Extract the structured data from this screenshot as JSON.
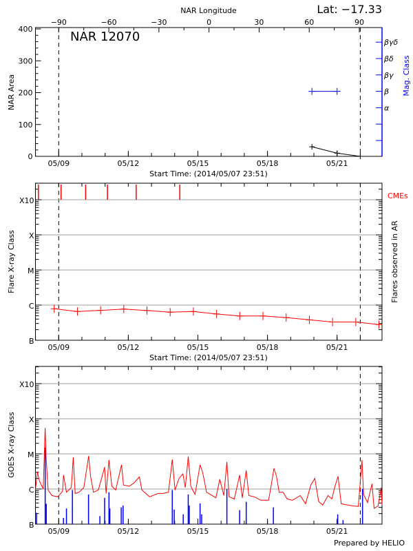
{
  "header": {
    "lat_label": "Lat: −17.33",
    "top_axis_label": "NAR Longitude",
    "region_title": "NAR 12070",
    "footer": "Prepared by HELIO"
  },
  "colors": {
    "axis": "#000000",
    "grid": "#a0a0a0",
    "mag_class": "#0000ff",
    "flare": "#ff0000",
    "goes_long": "#ff0000",
    "goes_short": "#0000ff",
    "cme": "#ff0000"
  },
  "chart_data": [
    {
      "type": "line",
      "ylabel": "NAR Area",
      "ylabel_right": "Mag. Class",
      "xlabel": "Start Time: (2014/05/07 23:51)",
      "ylim": [
        0,
        400
      ],
      "yticks": [
        "0",
        "100",
        "200",
        "300",
        "400"
      ],
      "xlim": [
        "2014-05-07T23:51",
        "2014-05-22T23:30"
      ],
      "xticks": [
        {
          "label": "05/09",
          "t": "2014-05-09T00:00"
        },
        {
          "label": "05/12",
          "t": "2014-05-12T00:00"
        },
        {
          "label": "05/15",
          "t": "2014-05-15T00:00"
        },
        {
          "label": "05/18",
          "t": "2014-05-18T00:00"
        },
        {
          "label": "05/21",
          "t": "2014-05-21T00:00"
        }
      ],
      "top_axis": {
        "label": "NAR Longitude",
        "ticks": [
          "-90",
          "-60",
          "-30",
          "0",
          "30",
          "60",
          "90"
        ],
        "range": [
          -90,
          90
        ]
      },
      "limb_markers": [
        "2014-05-09T00:00",
        "2014-05-22T00:00"
      ],
      "mag_class_ticks": [
        "",
        "",
        "α",
        "β",
        "βγ",
        "βδ",
        "βγδ"
      ],
      "area_series": [
        {
          "t": "2014-05-19T22:00",
          "v": 30
        },
        {
          "t": "2014-05-21T00:00",
          "v": 10
        },
        {
          "t": "2014-05-22T00:00",
          "v": 0
        }
      ],
      "mag_class_series": [
        {
          "t": "2014-05-19T22:00",
          "class": "β"
        },
        {
          "t": "2014-05-21T00:00",
          "class": "β"
        }
      ]
    },
    {
      "type": "line",
      "ylabel": "Flare X-ray Class",
      "ylabel_right": "Flares observed in AR",
      "cme_label": "CMEs",
      "xlabel": "Start Time: (2014/05/07 23:51)",
      "yscale": "log",
      "ylim": [
        1e-07,
        0.003
      ],
      "yticks": [
        {
          "label": "B",
          "v": 1e-07
        },
        {
          "label": "C",
          "v": 1e-06
        },
        {
          "label": "M",
          "v": 1e-05
        },
        {
          "label": "X",
          "v": 0.0001
        },
        {
          "label": "X10",
          "v": 0.001
        }
      ],
      "grid": true,
      "cmes": [
        "2014-05-08T03:00",
        "2014-05-09T02:25",
        "2014-05-10T03:50",
        "2014-05-11T02:25",
        "2014-05-12T08:10",
        "2014-05-14T05:15"
      ],
      "background_flux": [
        {
          "t": "2014-05-08T19:20",
          "v": 7.9e-07
        },
        {
          "t": "2014-05-09T19:20",
          "v": 6.6e-07
        },
        {
          "t": "2014-05-10T19:20",
          "v": 7.1e-07
        },
        {
          "t": "2014-05-11T19:20",
          "v": 7.7e-07
        },
        {
          "t": "2014-05-12T19:20",
          "v": 7e-07
        },
        {
          "t": "2014-05-13T19:20",
          "v": 6.3e-07
        },
        {
          "t": "2014-05-14T19:20",
          "v": 6.6e-07
        },
        {
          "t": "2014-05-15T19:20",
          "v": 5.6e-07
        },
        {
          "t": "2014-05-16T19:20",
          "v": 4.9e-07
        },
        {
          "t": "2014-05-17T19:20",
          "v": 4.9e-07
        },
        {
          "t": "2014-05-18T19:20",
          "v": 4.4e-07
        },
        {
          "t": "2014-05-19T19:20",
          "v": 3.8e-07
        },
        {
          "t": "2014-05-20T19:20",
          "v": 3.3e-07
        },
        {
          "t": "2014-05-21T19:20",
          "v": 3.3e-07
        },
        {
          "t": "2014-05-22T19:20",
          "v": 2.8e-07
        }
      ]
    },
    {
      "type": "line",
      "ylabel": "GOES X-ray Class",
      "yscale": "log",
      "ylim": [
        1e-07,
        0.003
      ],
      "yticks": [
        {
          "label": "B",
          "v": 1e-07
        },
        {
          "label": "C",
          "v": 1e-06
        },
        {
          "label": "M",
          "v": 1e-05
        },
        {
          "label": "X",
          "v": 0.0001
        },
        {
          "label": "X10",
          "v": 0.001
        }
      ],
      "grid": true,
      "long_channel": [
        {
          "t": "2014-05-07T23:51",
          "v": 9.4e-07
        },
        {
          "t": "2014-05-08T02:00",
          "v": 3.1e-06
        },
        {
          "t": "2014-05-08T04:00",
          "v": 1.7e-06
        },
        {
          "t": "2014-05-08T08:00",
          "v": 1e-06
        },
        {
          "t": "2014-05-08T10:00",
          "v": 5.5e-05
        },
        {
          "t": "2014-05-08T11:00",
          "v": 7.7e-06
        },
        {
          "t": "2014-05-08T13:00",
          "v": 9.4e-07
        },
        {
          "t": "2014-05-08T17:00",
          "v": 6.5e-07
        },
        {
          "t": "2014-05-08T23:00",
          "v": 6e-07
        },
        {
          "t": "2014-05-09T04:00",
          "v": 8.7e-07
        },
        {
          "t": "2014-05-09T05:00",
          "v": 2.5e-06
        },
        {
          "t": "2014-05-09T08:00",
          "v": 8.1e-07
        },
        {
          "t": "2014-05-09T13:00",
          "v": 1.1e-06
        },
        {
          "t": "2014-05-09T15:00",
          "v": 8e-06
        },
        {
          "t": "2014-05-09T17:00",
          "v": 7.5e-07
        },
        {
          "t": "2014-05-09T21:00",
          "v": 8.1e-07
        },
        {
          "t": "2014-05-10T02:00",
          "v": 1.1e-06
        },
        {
          "t": "2014-05-10T07:00",
          "v": 8.7e-06
        },
        {
          "t": "2014-05-10T09:00",
          "v": 2.3e-06
        },
        {
          "t": "2014-05-10T12:00",
          "v": 8.1e-07
        },
        {
          "t": "2014-05-10T17:00",
          "v": 9.4e-07
        },
        {
          "t": "2014-05-10T23:30",
          "v": 4.2e-06
        },
        {
          "t": "2014-05-11T01:00",
          "v": 7.5e-07
        },
        {
          "t": "2014-05-11T04:00",
          "v": 6.7e-06
        },
        {
          "t": "2014-05-11T07:00",
          "v": 1.2e-06
        },
        {
          "t": "2014-05-11T11:00",
          "v": 9.4e-07
        },
        {
          "t": "2014-05-11T17:00",
          "v": 4.9e-06
        },
        {
          "t": "2014-05-11T19:00",
          "v": 1.3e-06
        },
        {
          "t": "2014-05-12T01:00",
          "v": 1.2e-06
        },
        {
          "t": "2014-05-12T06:00",
          "v": 1.5e-06
        },
        {
          "t": "2014-05-12T11:30",
          "v": 2.2e-06
        },
        {
          "t": "2014-05-12T14:00",
          "v": 9.4e-07
        },
        {
          "t": "2014-05-12T22:00",
          "v": 6e-07
        },
        {
          "t": "2014-05-13T07:00",
          "v": 7.5e-07
        },
        {
          "t": "2014-05-13T12:00",
          "v": 7.5e-07
        },
        {
          "t": "2014-05-13T17:30",
          "v": 8.1e-07
        },
        {
          "t": "2014-05-13T21:30",
          "v": 6.9e-06
        },
        {
          "t": "2014-05-14T00:20",
          "v": 9.4e-07
        },
        {
          "t": "2014-05-14T04:30",
          "v": 2e-06
        },
        {
          "t": "2014-05-14T08:30",
          "v": 2.7e-06
        },
        {
          "t": "2014-05-14T11:00",
          "v": 1.1e-06
        },
        {
          "t": "2014-05-14T14:00",
          "v": 8.4e-06
        },
        {
          "t": "2014-05-14T16:40",
          "v": 1.2e-06
        },
        {
          "t": "2014-05-14T21:00",
          "v": 7e-07
        },
        {
          "t": "2014-05-15T02:15",
          "v": 4.9e-06
        },
        {
          "t": "2014-05-15T05:00",
          "v": 2.9e-06
        },
        {
          "t": "2014-05-15T09:00",
          "v": 8.1e-07
        },
        {
          "t": "2014-05-15T13:00",
          "v": 7e-07
        },
        {
          "t": "2014-05-15T18:40",
          "v": 5.6e-07
        },
        {
          "t": "2014-05-15T22:40",
          "v": 1.9e-06
        },
        {
          "t": "2014-05-16T02:50",
          "v": 6.5e-07
        },
        {
          "t": "2014-05-16T06:00",
          "v": 5.9e-06
        },
        {
          "t": "2014-05-16T08:15",
          "v": 6e-07
        },
        {
          "t": "2014-05-16T13:40",
          "v": 5.2e-07
        },
        {
          "t": "2014-05-16T19:10",
          "v": 2.5e-06
        },
        {
          "t": "2014-05-16T21:55",
          "v": 5.6e-07
        },
        {
          "t": "2014-05-17T02:00",
          "v": 3.4e-06
        },
        {
          "t": "2014-05-17T04:40",
          "v": 6.5e-07
        },
        {
          "t": "2014-05-17T10:10",
          "v": 6e-07
        },
        {
          "t": "2014-05-17T17:00",
          "v": 4.8e-07
        },
        {
          "t": "2014-05-18T01:10",
          "v": 4.8e-07
        },
        {
          "t": "2014-05-18T03:55",
          "v": 1.3e-06
        },
        {
          "t": "2014-05-18T06:40",
          "v": 3.9e-06
        },
        {
          "t": "2014-05-18T09:20",
          "v": 2.3e-06
        },
        {
          "t": "2014-05-18T12:05",
          "v": 8.1e-07
        },
        {
          "t": "2014-05-18T16:10",
          "v": 8.1e-07
        },
        {
          "t": "2014-05-18T20:20",
          "v": 5.2e-07
        },
        {
          "t": "2014-05-19T01:45",
          "v": 4.8e-07
        },
        {
          "t": "2014-05-19T09:55",
          "v": 6.5e-07
        },
        {
          "t": "2014-05-19T15:25",
          "v": 3.8e-07
        },
        {
          "t": "2014-05-19T20:50",
          "v": 1.3e-06
        },
        {
          "t": "2014-05-20T00:55",
          "v": 2e-06
        },
        {
          "t": "2014-05-20T05:00",
          "v": 4.4e-07
        },
        {
          "t": "2014-05-20T09:10",
          "v": 3.5e-07
        },
        {
          "t": "2014-05-20T14:35",
          "v": 6.5e-07
        },
        {
          "t": "2014-05-20T18:40",
          "v": 5.2e-07
        },
        {
          "t": "2014-05-20T21:25",
          "v": 1.1e-06
        },
        {
          "t": "2014-05-21T01:00",
          "v": 2.3e-06
        },
        {
          "t": "2014-05-21T04:15",
          "v": 3.8e-07
        },
        {
          "t": "2014-05-21T11:00",
          "v": 3.5e-07
        },
        {
          "t": "2014-05-21T16:30",
          "v": 3.3e-07
        },
        {
          "t": "2014-05-21T22:00",
          "v": 3.2e-07
        },
        {
          "t": "2014-05-22T01:45",
          "v": 6.7e-06
        },
        {
          "t": "2014-05-22T03:25",
          "v": 7e-07
        },
        {
          "t": "2014-05-22T07:30",
          "v": 4.1e-07
        },
        {
          "t": "2014-05-22T12:10",
          "v": 1.4e-06
        },
        {
          "t": "2014-05-22T14:20",
          "v": 2.8e-07
        },
        {
          "t": "2014-05-22T18:25",
          "v": 3.3e-07
        },
        {
          "t": "2014-05-22T21:40",
          "v": 1.1e-06
        },
        {
          "t": "2014-05-22T22:30",
          "v": 3.5e-07
        }
      ],
      "short_channel_peaks": [
        {
          "t": "2014-05-08T01:05",
          "v": 2.1e-07
        },
        {
          "t": "2014-05-08T10:00",
          "v": 1.5e-05
        },
        {
          "t": "2014-05-08T11:10",
          "v": 3.8e-07
        },
        {
          "t": "2014-05-09T04:55",
          "v": 1.5e-07
        },
        {
          "t": "2014-05-09T08:00",
          "v": 2.8e-07
        },
        {
          "t": "2014-05-09T14:10",
          "v": 9.4e-07
        },
        {
          "t": "2014-05-10T06:50",
          "v": 7e-07
        },
        {
          "t": "2014-05-10T18:35",
          "v": 1.7e-07
        },
        {
          "t": "2014-05-10T23:30",
          "v": 5.6e-07
        },
        {
          "t": "2014-05-11T04:00",
          "v": 8.1e-07
        },
        {
          "t": "2014-05-11T04:55",
          "v": 2.8e-07
        },
        {
          "t": "2014-05-11T16:40",
          "v": 3e-07
        },
        {
          "t": "2014-05-11T18:35",
          "v": 3.4e-07
        },
        {
          "t": "2014-05-13T21:30",
          "v": 9.4e-07
        },
        {
          "t": "2014-05-13T23:30",
          "v": 2.6e-07
        },
        {
          "t": "2014-05-14T08:50",
          "v": 1.9e-07
        },
        {
          "t": "2014-05-14T14:00",
          "v": 7e-07
        },
        {
          "t": "2014-05-14T15:05",
          "v": 3.4e-07
        },
        {
          "t": "2014-05-15T02:15",
          "v": 3.9e-07
        },
        {
          "t": "2014-05-15T03:55",
          "v": 1.9e-07
        },
        {
          "t": "2014-05-16T06:00",
          "v": 1e-06
        },
        {
          "t": "2014-05-16T19:10",
          "v": 2.5e-07
        },
        {
          "t": "2014-05-17T02:00",
          "v": 4.3e-07
        },
        {
          "t": "2014-05-18T06:05",
          "v": 3e-07
        },
        {
          "t": "2014-05-21T00:40",
          "v": 1.9e-07
        },
        {
          "t": "2014-05-21T06:10",
          "v": 1.3e-07
        },
        {
          "t": "2014-05-22T02:20",
          "v": 1e-06
        }
      ]
    }
  ]
}
